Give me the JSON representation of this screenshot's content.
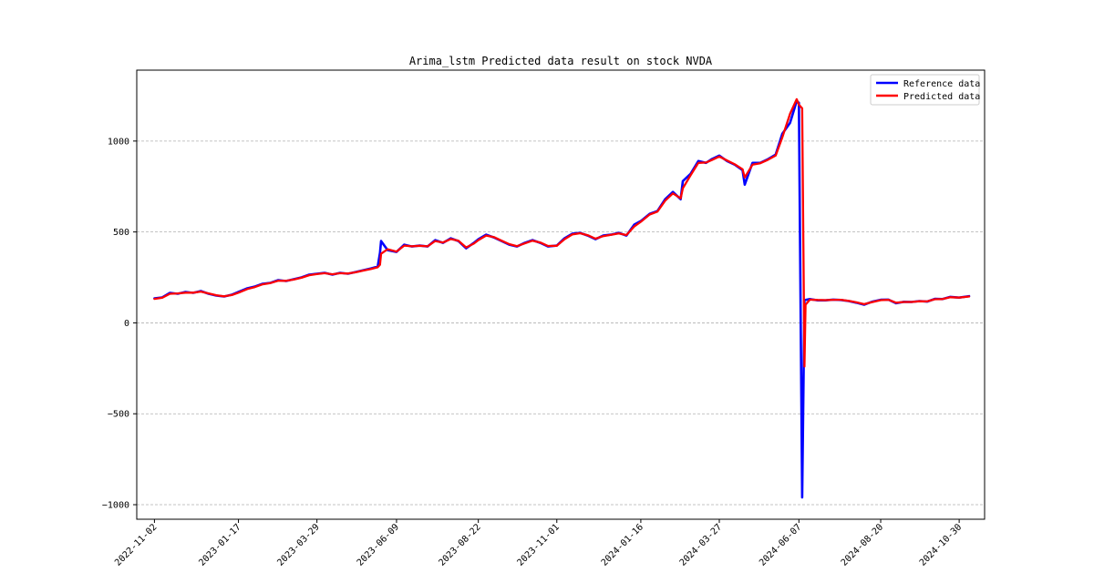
{
  "chart_data": {
    "type": "line",
    "title": "Arima_lstm Predicted data result on stock NVDA",
    "xlabel": "",
    "ylabel": "",
    "x_start": "2022-11-02",
    "x_end": "2024-11-08",
    "xlim": [
      "2022-10-17",
      "2024-11-22"
    ],
    "ylim": [
      -1080,
      1390
    ],
    "x_ticks": [
      "2022-11-02",
      "2023-01-17",
      "2023-03-29",
      "2023-06-09",
      "2023-08-22",
      "2023-11-01",
      "2024-01-16",
      "2024-03-27",
      "2024-06-07",
      "2024-08-20",
      "2024-10-30"
    ],
    "y_ticks": [
      -1000,
      -500,
      0,
      500,
      1000
    ],
    "grid": {
      "y": true,
      "x": false,
      "style": "dashed"
    },
    "legend": {
      "placement": "top-right"
    },
    "series": [
      {
        "name": "Reference data",
        "color": "#0000ff",
        "points": [
          [
            "2022-11-02",
            135
          ],
          [
            "2022-11-09",
            140
          ],
          [
            "2022-11-16",
            165
          ],
          [
            "2022-11-23",
            160
          ],
          [
            "2022-11-30",
            170
          ],
          [
            "2022-12-07",
            165
          ],
          [
            "2022-12-14",
            175
          ],
          [
            "2022-12-21",
            160
          ],
          [
            "2022-12-28",
            150
          ],
          [
            "2023-01-04",
            145
          ],
          [
            "2023-01-11",
            155
          ],
          [
            "2023-01-17",
            170
          ],
          [
            "2023-01-25",
            190
          ],
          [
            "2023-02-01",
            200
          ],
          [
            "2023-02-08",
            215
          ],
          [
            "2023-02-15",
            220
          ],
          [
            "2023-02-22",
            235
          ],
          [
            "2023-03-01",
            230
          ],
          [
            "2023-03-08",
            240
          ],
          [
            "2023-03-15",
            250
          ],
          [
            "2023-03-22",
            265
          ],
          [
            "2023-03-29",
            270
          ],
          [
            "2023-04-05",
            275
          ],
          [
            "2023-04-12",
            265
          ],
          [
            "2023-04-19",
            275
          ],
          [
            "2023-04-26",
            270
          ],
          [
            "2023-05-03",
            280
          ],
          [
            "2023-05-10",
            290
          ],
          [
            "2023-05-17",
            300
          ],
          [
            "2023-05-23",
            310
          ],
          [
            "2023-05-25",
            385
          ],
          [
            "2023-05-26",
            450
          ],
          [
            "2023-06-01",
            400
          ],
          [
            "2023-06-09",
            390
          ],
          [
            "2023-06-16",
            430
          ],
          [
            "2023-06-23",
            420
          ],
          [
            "2023-06-30",
            425
          ],
          [
            "2023-07-07",
            420
          ],
          [
            "2023-07-14",
            455
          ],
          [
            "2023-07-21",
            440
          ],
          [
            "2023-07-28",
            465
          ],
          [
            "2023-08-04",
            450
          ],
          [
            "2023-08-11",
            410
          ],
          [
            "2023-08-18",
            440
          ],
          [
            "2023-08-22",
            460
          ],
          [
            "2023-08-29",
            485
          ],
          [
            "2023-09-05",
            470
          ],
          [
            "2023-09-12",
            450
          ],
          [
            "2023-09-19",
            430
          ],
          [
            "2023-09-26",
            420
          ],
          [
            "2023-10-03",
            440
          ],
          [
            "2023-10-10",
            455
          ],
          [
            "2023-10-17",
            440
          ],
          [
            "2023-10-24",
            420
          ],
          [
            "2023-11-01",
            425
          ],
          [
            "2023-11-08",
            465
          ],
          [
            "2023-11-15",
            490
          ],
          [
            "2023-11-22",
            495
          ],
          [
            "2023-11-29",
            480
          ],
          [
            "2023-12-06",
            460
          ],
          [
            "2023-12-13",
            480
          ],
          [
            "2023-12-20",
            485
          ],
          [
            "2023-12-27",
            495
          ],
          [
            "2024-01-03",
            480
          ],
          [
            "2024-01-10",
            540
          ],
          [
            "2024-01-16",
            560
          ],
          [
            "2024-01-24",
            600
          ],
          [
            "2024-01-31",
            615
          ],
          [
            "2024-02-07",
            680
          ],
          [
            "2024-02-14",
            720
          ],
          [
            "2024-02-21",
            680
          ],
          [
            "2024-02-23",
            780
          ],
          [
            "2024-03-01",
            820
          ],
          [
            "2024-03-08",
            890
          ],
          [
            "2024-03-15",
            880
          ],
          [
            "2024-03-20",
            900
          ],
          [
            "2024-03-27",
            920
          ],
          [
            "2024-04-03",
            890
          ],
          [
            "2024-04-10",
            870
          ],
          [
            "2024-04-17",
            840
          ],
          [
            "2024-04-19",
            760
          ],
          [
            "2024-04-26",
            880
          ],
          [
            "2024-05-03",
            880
          ],
          [
            "2024-05-10",
            900
          ],
          [
            "2024-05-17",
            925
          ],
          [
            "2024-05-23",
            1040
          ],
          [
            "2024-05-30",
            1100
          ],
          [
            "2024-06-05",
            1220
          ],
          [
            "2024-06-07",
            1210
          ],
          [
            "2024-06-10",
            -960
          ],
          [
            "2024-06-12",
            125
          ],
          [
            "2024-06-17",
            131
          ],
          [
            "2024-06-24",
            124
          ],
          [
            "2024-07-01",
            124
          ],
          [
            "2024-07-08",
            128
          ],
          [
            "2024-07-15",
            126
          ],
          [
            "2024-07-22",
            120
          ],
          [
            "2024-07-29",
            111
          ],
          [
            "2024-08-05",
            100
          ],
          [
            "2024-08-12",
            116
          ],
          [
            "2024-08-20",
            127
          ],
          [
            "2024-08-27",
            128
          ],
          [
            "2024-09-03",
            108
          ],
          [
            "2024-09-10",
            116
          ],
          [
            "2024-09-17",
            115
          ],
          [
            "2024-09-24",
            120
          ],
          [
            "2024-10-01",
            117
          ],
          [
            "2024-10-08",
            132
          ],
          [
            "2024-10-15",
            131
          ],
          [
            "2024-10-22",
            143
          ],
          [
            "2024-10-30",
            139
          ],
          [
            "2024-11-08",
            147
          ]
        ]
      },
      {
        "name": "Predicted data",
        "color": "#ff0000",
        "points": [
          [
            "2022-11-02",
            132
          ],
          [
            "2022-11-09",
            138
          ],
          [
            "2022-11-16",
            160
          ],
          [
            "2022-11-23",
            162
          ],
          [
            "2022-11-30",
            166
          ],
          [
            "2022-12-07",
            166
          ],
          [
            "2022-12-14",
            172
          ],
          [
            "2022-12-21",
            162
          ],
          [
            "2022-12-28",
            152
          ],
          [
            "2023-01-04",
            146
          ],
          [
            "2023-01-11",
            153
          ],
          [
            "2023-01-17",
            166
          ],
          [
            "2023-01-25",
            186
          ],
          [
            "2023-02-01",
            197
          ],
          [
            "2023-02-08",
            212
          ],
          [
            "2023-02-15",
            219
          ],
          [
            "2023-02-22",
            232
          ],
          [
            "2023-03-01",
            231
          ],
          [
            "2023-03-08",
            238
          ],
          [
            "2023-03-15",
            248
          ],
          [
            "2023-03-22",
            262
          ],
          [
            "2023-03-29",
            268
          ],
          [
            "2023-04-05",
            273
          ],
          [
            "2023-04-12",
            267
          ],
          [
            "2023-04-19",
            273
          ],
          [
            "2023-04-26",
            271
          ],
          [
            "2023-05-03",
            278
          ],
          [
            "2023-05-10",
            288
          ],
          [
            "2023-05-17",
            297
          ],
          [
            "2023-05-23",
            306
          ],
          [
            "2023-05-25",
            320
          ],
          [
            "2023-05-26",
            380
          ],
          [
            "2023-06-01",
            405
          ],
          [
            "2023-06-09",
            392
          ],
          [
            "2023-06-16",
            425
          ],
          [
            "2023-06-23",
            421
          ],
          [
            "2023-06-30",
            424
          ],
          [
            "2023-07-07",
            421
          ],
          [
            "2023-07-14",
            450
          ],
          [
            "2023-07-21",
            442
          ],
          [
            "2023-07-28",
            461
          ],
          [
            "2023-08-04",
            452
          ],
          [
            "2023-08-11",
            415
          ],
          [
            "2023-08-18",
            436
          ],
          [
            "2023-08-22",
            455
          ],
          [
            "2023-08-29",
            480
          ],
          [
            "2023-09-05",
            472
          ],
          [
            "2023-09-12",
            452
          ],
          [
            "2023-09-19",
            433
          ],
          [
            "2023-09-26",
            422
          ],
          [
            "2023-10-03",
            437
          ],
          [
            "2023-10-10",
            452
          ],
          [
            "2023-10-17",
            442
          ],
          [
            "2023-10-24",
            423
          ],
          [
            "2023-11-01",
            424
          ],
          [
            "2023-11-08",
            460
          ],
          [
            "2023-11-15",
            486
          ],
          [
            "2023-11-22",
            493
          ],
          [
            "2023-11-29",
            482
          ],
          [
            "2023-12-06",
            463
          ],
          [
            "2023-12-13",
            477
          ],
          [
            "2023-12-20",
            484
          ],
          [
            "2023-12-27",
            492
          ],
          [
            "2024-01-03",
            483
          ],
          [
            "2024-01-10",
            530
          ],
          [
            "2024-01-16",
            556
          ],
          [
            "2024-01-24",
            596
          ],
          [
            "2024-01-31",
            612
          ],
          [
            "2024-02-07",
            672
          ],
          [
            "2024-02-14",
            712
          ],
          [
            "2024-02-21",
            685
          ],
          [
            "2024-02-23",
            740
          ],
          [
            "2024-03-01",
            812
          ],
          [
            "2024-03-08",
            880
          ],
          [
            "2024-03-15",
            882
          ],
          [
            "2024-03-20",
            895
          ],
          [
            "2024-03-27",
            915
          ],
          [
            "2024-04-03",
            893
          ],
          [
            "2024-04-10",
            872
          ],
          [
            "2024-04-17",
            845
          ],
          [
            "2024-04-19",
            800
          ],
          [
            "2024-04-26",
            870
          ],
          [
            "2024-05-03",
            878
          ],
          [
            "2024-05-10",
            897
          ],
          [
            "2024-05-17",
            920
          ],
          [
            "2024-05-23",
            1020
          ],
          [
            "2024-05-30",
            1150
          ],
          [
            "2024-06-05",
            1230
          ],
          [
            "2024-06-07",
            1200
          ],
          [
            "2024-06-10",
            1180
          ],
          [
            "2024-06-12",
            -240
          ],
          [
            "2024-06-13",
            100
          ],
          [
            "2024-06-17",
            128
          ],
          [
            "2024-06-24",
            126
          ],
          [
            "2024-07-01",
            125
          ],
          [
            "2024-07-08",
            127
          ],
          [
            "2024-07-15",
            127
          ],
          [
            "2024-07-22",
            121
          ],
          [
            "2024-07-29",
            113
          ],
          [
            "2024-08-05",
            103
          ],
          [
            "2024-08-12",
            114
          ],
          [
            "2024-08-20",
            125
          ],
          [
            "2024-08-27",
            127
          ],
          [
            "2024-09-03",
            111
          ],
          [
            "2024-09-10",
            115
          ],
          [
            "2024-09-17",
            115
          ],
          [
            "2024-09-24",
            119
          ],
          [
            "2024-10-01",
            118
          ],
          [
            "2024-10-08",
            130
          ],
          [
            "2024-10-15",
            131
          ],
          [
            "2024-10-22",
            141
          ],
          [
            "2024-10-30",
            139
          ],
          [
            "2024-11-08",
            145
          ]
        ]
      }
    ]
  }
}
